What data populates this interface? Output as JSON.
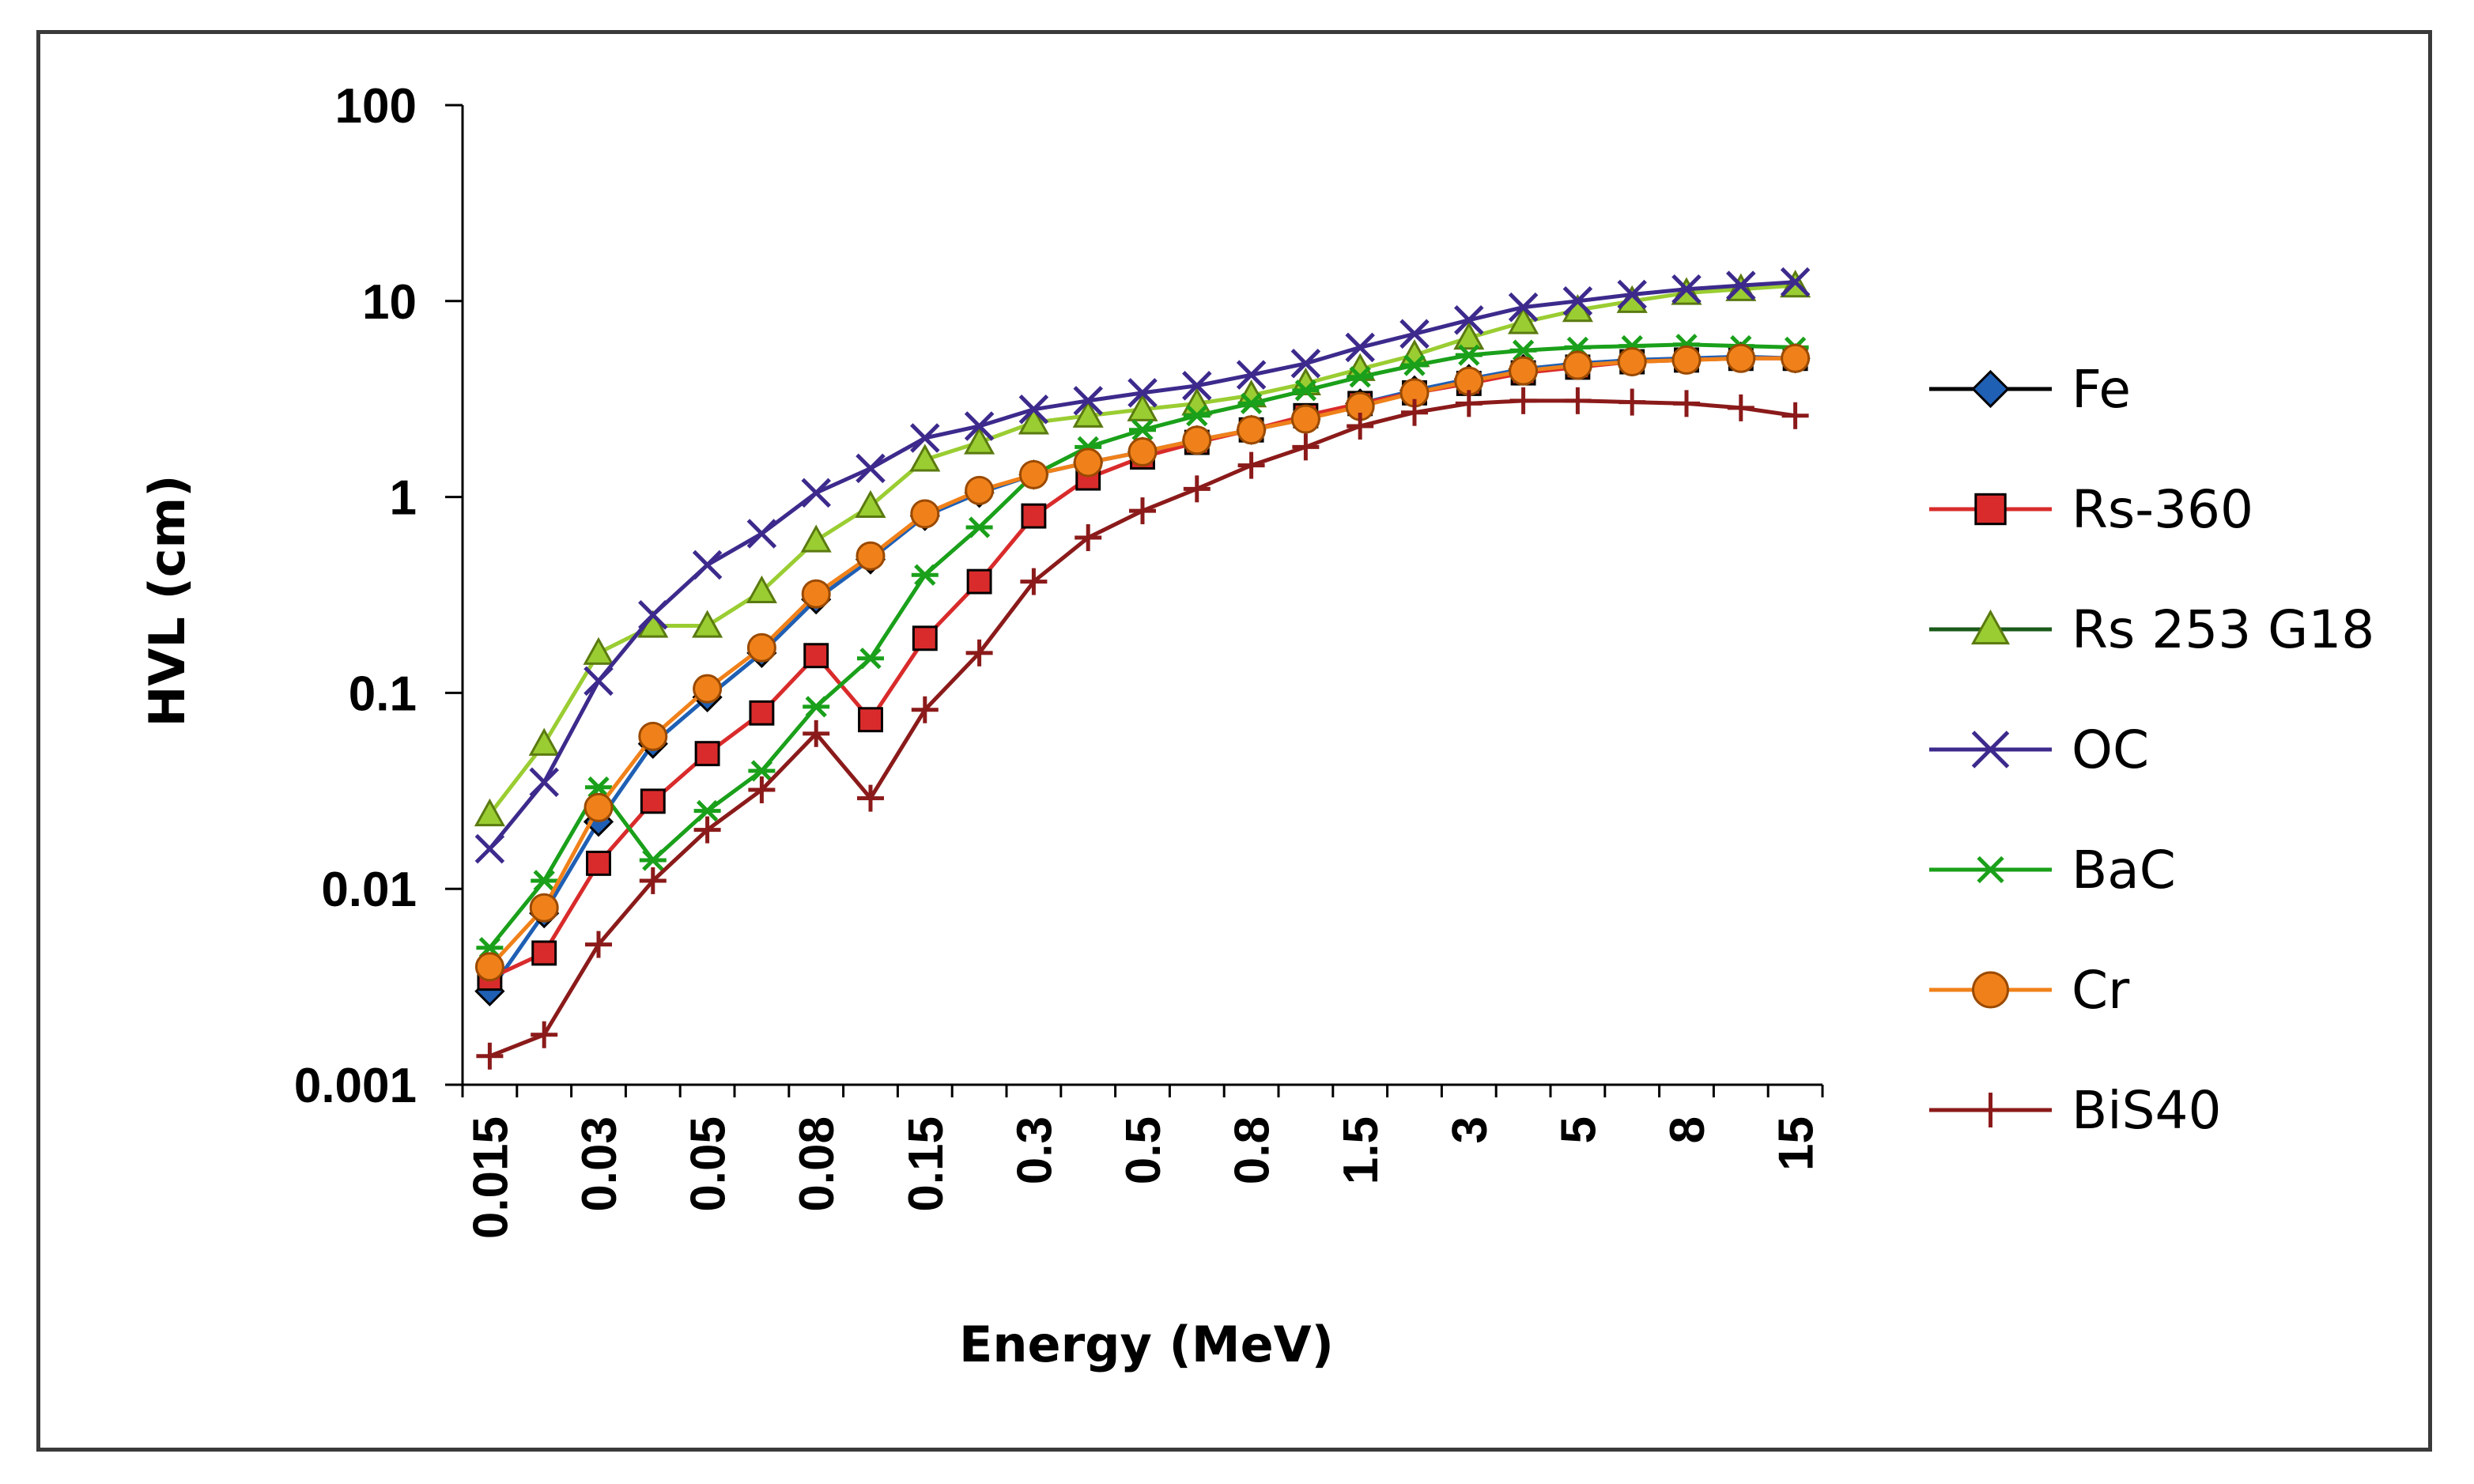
{
  "chart_data": {
    "type": "line",
    "title": "",
    "xlabel": "Energy (MeV)",
    "ylabel": "HVL (cm)",
    "yscale": "log",
    "ylim": [
      0.001,
      100
    ],
    "y_ticks": [
      "100",
      "10",
      "1",
      "0.1",
      "0.01",
      "0.001"
    ],
    "y_tick_values": [
      100,
      10,
      1,
      0.1,
      0.01,
      0.001
    ],
    "x_tick_labels": [
      "0.015",
      "0.03",
      "0.05",
      "0.08",
      "0.15",
      "0.3",
      "0.5",
      "0.8",
      "1.5",
      "3",
      "5",
      "8",
      "15"
    ],
    "x_tick_indices": [
      0,
      2,
      4,
      6,
      8,
      10,
      12,
      14,
      16,
      18,
      20,
      22,
      24
    ],
    "x_count": 25,
    "legend_position": "right",
    "series": [
      {
        "name": "Fe",
        "color": "#1f5fb4",
        "marker": "diamond",
        "values": [
          0.003,
          0.0075,
          0.022,
          0.055,
          0.095,
          0.16,
          0.3,
          0.48,
          0.8,
          1.05,
          1.3,
          1.5,
          1.7,
          1.95,
          2.2,
          2.5,
          3.0,
          3.5,
          4.0,
          4.5,
          4.8,
          5.0,
          5.1,
          5.2,
          5.1
        ]
      },
      {
        "name": "Rs-360",
        "color": "#d92b2b",
        "marker": "square",
        "values": [
          0.0035,
          0.0047,
          0.0135,
          0.028,
          0.049,
          0.079,
          0.155,
          0.073,
          0.19,
          0.37,
          0.8,
          1.25,
          1.6,
          1.9,
          2.2,
          2.6,
          3.0,
          3.4,
          3.8,
          4.3,
          4.6,
          4.9,
          5.0,
          5.1,
          5.1
        ]
      },
      {
        "name": "Rs 253 G18",
        "color": "#9acd32",
        "marker": "triangle",
        "values": [
          0.024,
          0.055,
          0.16,
          0.22,
          0.22,
          0.33,
          0.6,
          0.9,
          1.55,
          1.9,
          2.4,
          2.6,
          2.8,
          3.0,
          3.3,
          3.8,
          4.5,
          5.3,
          6.5,
          7.8,
          9.0,
          10.0,
          11.0,
          11.5,
          12.0
        ]
      },
      {
        "name": "OC",
        "color": "#3d2a8c",
        "marker": "x",
        "values": [
          0.016,
          0.035,
          0.115,
          0.25,
          0.45,
          0.65,
          1.05,
          1.4,
          2.0,
          2.3,
          2.8,
          3.1,
          3.4,
          3.7,
          4.2,
          4.8,
          5.8,
          6.8,
          8.0,
          9.3,
          10.0,
          10.8,
          11.5,
          12.0,
          12.5
        ]
      },
      {
        "name": "BaC",
        "color": "#1aa01a",
        "marker": "star",
        "values": [
          0.005,
          0.011,
          0.033,
          0.014,
          0.025,
          0.04,
          0.085,
          0.15,
          0.4,
          0.7,
          1.3,
          1.8,
          2.2,
          2.6,
          3.0,
          3.5,
          4.1,
          4.7,
          5.3,
          5.6,
          5.8,
          5.9,
          6.0,
          5.9,
          5.8
        ]
      },
      {
        "name": "Cr",
        "color": "#f0811a",
        "marker": "circle",
        "values": [
          0.004,
          0.008,
          0.026,
          0.06,
          0.105,
          0.17,
          0.32,
          0.5,
          0.82,
          1.08,
          1.3,
          1.5,
          1.7,
          1.95,
          2.2,
          2.5,
          2.9,
          3.4,
          3.9,
          4.4,
          4.7,
          4.9,
          5.0,
          5.1,
          5.1
        ]
      },
      {
        "name": "BiS40",
        "color": "#8b1a1a",
        "marker": "plus",
        "values": [
          0.0014,
          0.0018,
          0.0052,
          0.011,
          0.02,
          0.032,
          0.062,
          0.029,
          0.082,
          0.16,
          0.37,
          0.62,
          0.85,
          1.1,
          1.45,
          1.8,
          2.3,
          2.7,
          3.0,
          3.1,
          3.1,
          3.05,
          3.0,
          2.85,
          2.6
        ]
      }
    ]
  }
}
